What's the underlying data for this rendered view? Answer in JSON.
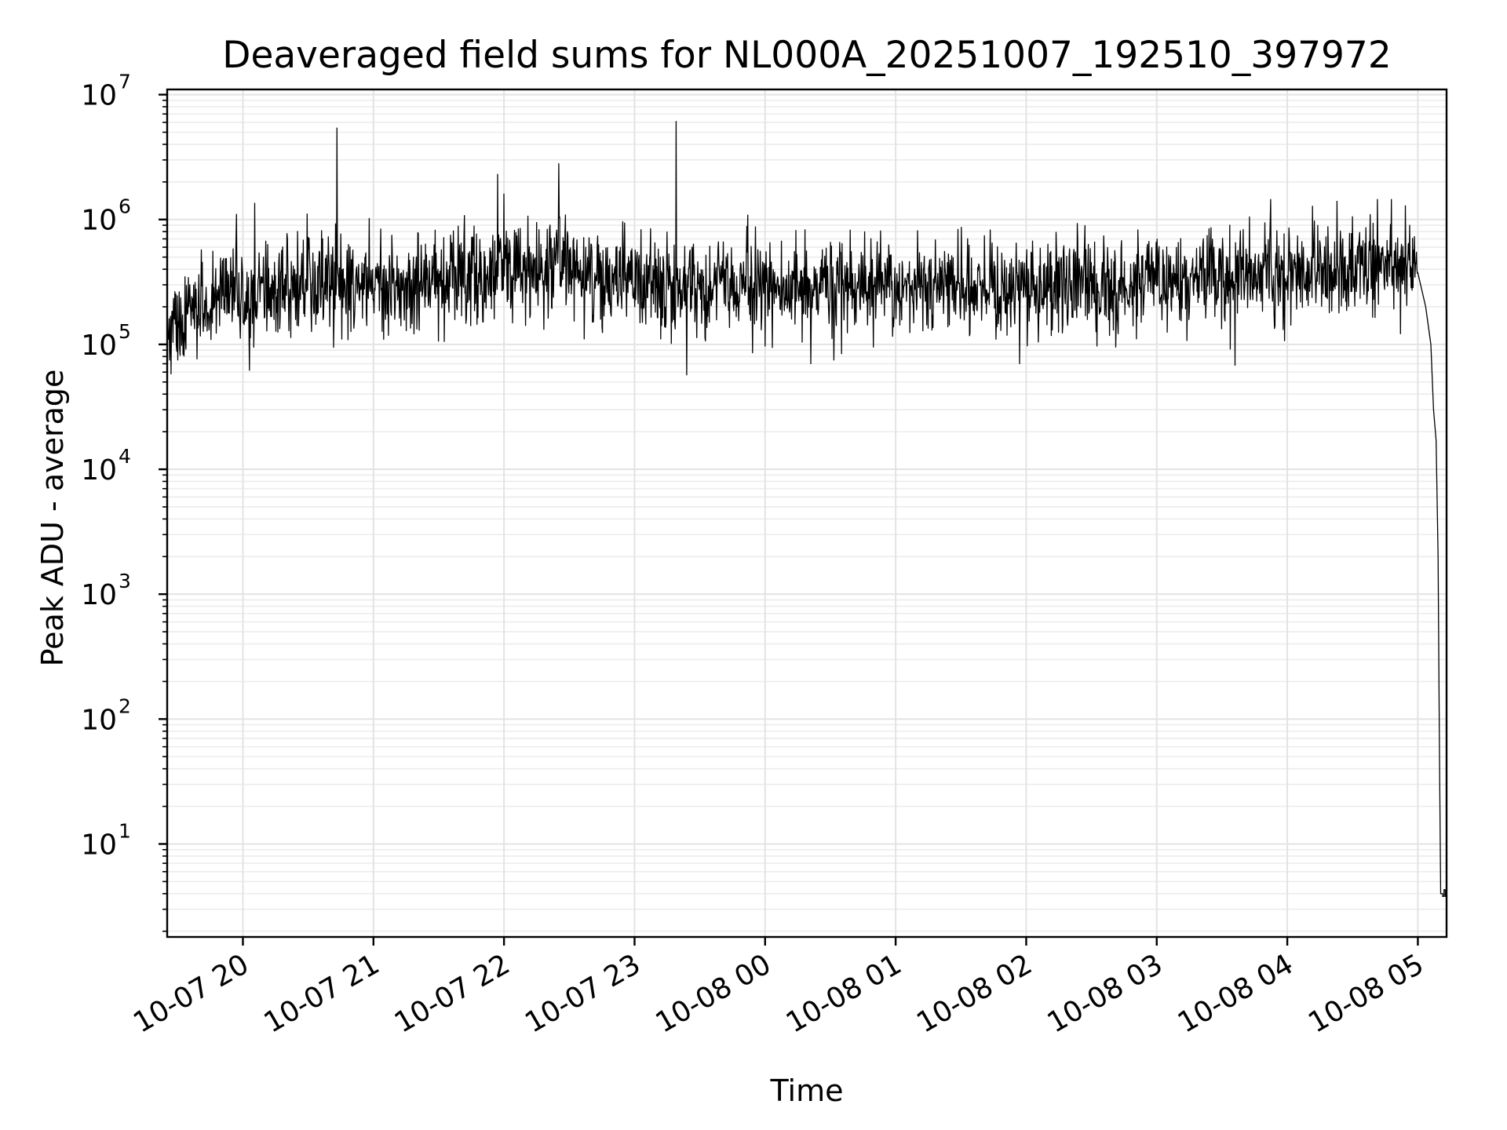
{
  "chart_data": {
    "type": "line",
    "title": "Deaveraged field sums for NL000A_20251007_192510_397972",
    "xlabel": "Time",
    "ylabel": "Peak ADU - average",
    "yscale": "log",
    "ylim": [
      1.8,
      11000000
    ],
    "xlim_hours": [
      -0.58,
      9.22
    ],
    "grid": true,
    "x_ticks": [
      {
        "label": "10-07 20",
        "hour": 0
      },
      {
        "label": "10-07 21",
        "hour": 1
      },
      {
        "label": "10-07 22",
        "hour": 2
      },
      {
        "label": "10-07 23",
        "hour": 3
      },
      {
        "label": "10-08 00",
        "hour": 4
      },
      {
        "label": "10-08 01",
        "hour": 5
      },
      {
        "label": "10-08 02",
        "hour": 6
      },
      {
        "label": "10-08 03",
        "hour": 7
      },
      {
        "label": "10-08 04",
        "hour": 8
      },
      {
        "label": "10-08 05",
        "hour": 9
      }
    ],
    "y_ticks": [
      {
        "base": "10",
        "exp": "1",
        "value": 10
      },
      {
        "base": "10",
        "exp": "2",
        "value": 100
      },
      {
        "base": "10",
        "exp": "3",
        "value": 1000
      },
      {
        "base": "10",
        "exp": "4",
        "value": 10000
      },
      {
        "base": "10",
        "exp": "5",
        "value": 100000
      },
      {
        "base": "10",
        "exp": "6",
        "value": 1000000
      },
      {
        "base": "10",
        "exp": "7",
        "value": 10000000
      }
    ],
    "series": [
      {
        "name": "deaveraged field sum",
        "color": "#000000",
        "baseline_profile": [
          [
            -0.58,
            160000
          ],
          [
            -0.3,
            200000
          ],
          [
            0.0,
            240000
          ],
          [
            0.5,
            290000
          ],
          [
            1.0,
            300000
          ],
          [
            1.5,
            320000
          ],
          [
            2.0,
            380000
          ],
          [
            2.4,
            470000
          ],
          [
            2.6,
            360000
          ],
          [
            3.0,
            300000
          ],
          [
            4.0,
            290000
          ],
          [
            5.0,
            285000
          ],
          [
            6.0,
            290000
          ],
          [
            7.0,
            300000
          ],
          [
            7.6,
            360000
          ],
          [
            8.0,
            380000
          ],
          [
            8.5,
            420000
          ],
          [
            9.0,
            400000
          ]
        ],
        "spikes": [
          {
            "hour": 0.72,
            "value": 5400000
          },
          {
            "hour": 1.95,
            "value": 2300000
          },
          {
            "hour": 2.42,
            "value": 2800000
          },
          {
            "hour": 3.32,
            "value": 6100000
          },
          {
            "hour": 0.09,
            "value": 1350000
          },
          {
            "hour": 2.0,
            "value": 1600000
          },
          {
            "hour": 8.38,
            "value": 1400000
          },
          {
            "hour": -0.05,
            "value": 1100000
          }
        ],
        "dips": [
          {
            "hour": -0.55,
            "value": 58000
          },
          {
            "hour": 0.05,
            "value": 62000
          },
          {
            "hour": 3.4,
            "value": 57000
          },
          {
            "hour": 4.35,
            "value": 70000
          },
          {
            "hour": 5.95,
            "value": 70000
          },
          {
            "hour": 7.6,
            "value": 68000
          }
        ],
        "dropoff": [
          [
            9.0,
            520000
          ],
          [
            9.06,
            200000
          ],
          [
            9.1,
            100000
          ],
          [
            9.12,
            30000
          ],
          [
            9.14,
            17000
          ],
          [
            9.155,
            2000
          ],
          [
            9.165,
            60
          ],
          [
            9.175,
            4
          ]
        ],
        "tail": [
          [
            9.175,
            4
          ],
          [
            9.19,
            3.8
          ],
          [
            9.2,
            4.3
          ],
          [
            9.21,
            3.8
          ],
          [
            9.22,
            4.3
          ]
        ]
      }
    ]
  }
}
